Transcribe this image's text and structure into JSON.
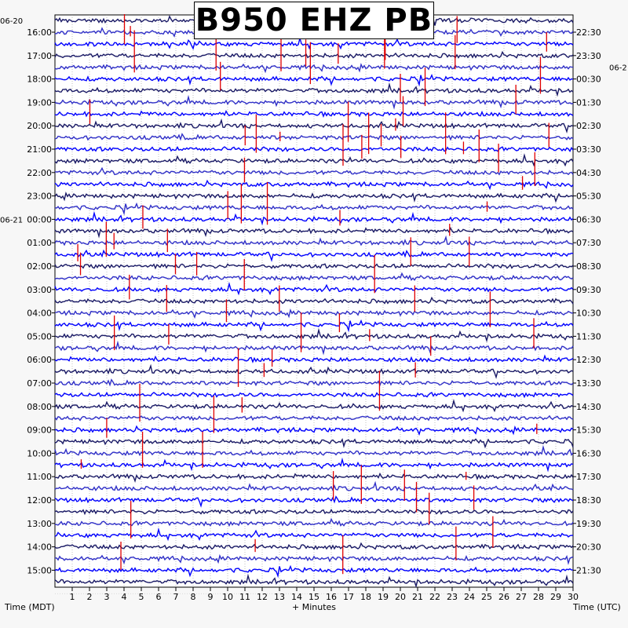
{
  "chart_data": {
    "type": "helicorder",
    "title": "B950 EHZ PB",
    "xlabel": "+ Minutes",
    "left_axis_label": "Time (MDT)",
    "right_axis_label": "Time (UTC)",
    "x_ticks": [
      1,
      2,
      3,
      4,
      5,
      6,
      7,
      8,
      9,
      10,
      11,
      12,
      13,
      14,
      15,
      16,
      17,
      18,
      19,
      20,
      21,
      22,
      23,
      24,
      25,
      26,
      27,
      28,
      29,
      30
    ],
    "xlim": [
      0,
      30
    ],
    "grid": true,
    "rows_per_hour": 2,
    "trace_colors": [
      "#1a1a66",
      "#3030c8",
      "#0000ff"
    ],
    "event_color": "#e00000",
    "left_date_labels": [
      {
        "label": "06-20",
        "hour_index": -0.5
      },
      {
        "label": "06-21",
        "hour_index": 8
      }
    ],
    "right_date_labels": [
      {
        "label": "06-2",
        "hour_index": 1.5
      }
    ],
    "left_time_labels": [
      "16:00",
      "17:00",
      "18:00",
      "19:00",
      "20:00",
      "21:00",
      "22:00",
      "23:00",
      "00:00",
      "01:00",
      "02:00",
      "03:00",
      "04:00",
      "05:00",
      "06:00",
      "07:00",
      "08:00",
      "09:00",
      "10:00",
      "11:00",
      "12:00",
      "13:00",
      "14:00",
      "15:00"
    ],
    "right_time_labels": [
      "22:30",
      "23:30",
      "00:30",
      "01:30",
      "02:30",
      "03:30",
      "04:30",
      "05:30",
      "06:30",
      "07:30",
      "08:30",
      "09:30",
      "10:30",
      "11:30",
      "12:30",
      "13:30",
      "14:30",
      "15:30",
      "16:30",
      "17:30",
      "18:30",
      "19:30",
      "20:30",
      "21:30"
    ]
  }
}
